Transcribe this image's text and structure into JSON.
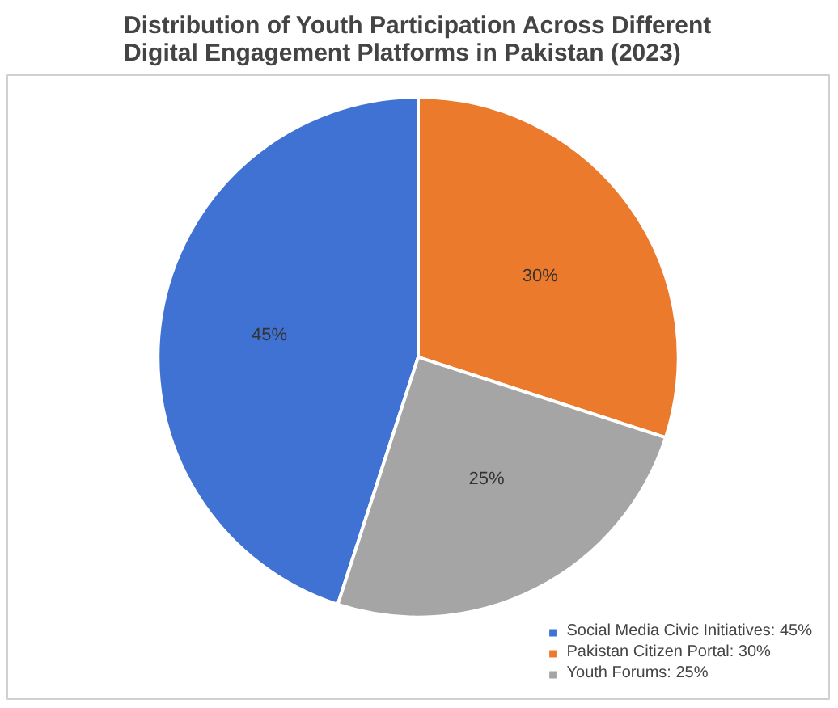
{
  "chart_data": {
    "type": "pie",
    "title": "Distribution of Youth Participation Across Different\nDigital Engagement Platforms in Pakistan (2023)",
    "categories": [
      "Social Media Civic Initiatives: 45%",
      "Pakistan Citizen Portal: 30%",
      "Youth Forums: 25%"
    ],
    "values": [
      45,
      30,
      25
    ],
    "value_labels": [
      "45%",
      "30%",
      "25%"
    ],
    "colors": [
      "#3f72d2",
      "#ec7a2c",
      "#a5a5a5"
    ],
    "legend": "bottom right"
  }
}
